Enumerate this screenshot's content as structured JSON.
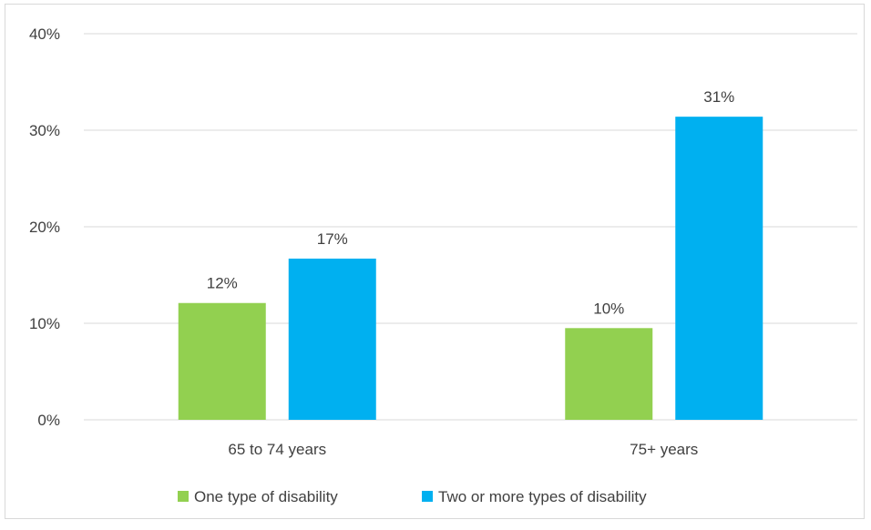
{
  "chart_data": {
    "type": "bar",
    "title": "",
    "xlabel": "",
    "ylabel": "",
    "categories": [
      "65 to 74 years",
      "75+ years"
    ],
    "series": [
      {
        "name": "One type of disability",
        "color": "#92d050",
        "values": [
          12,
          10
        ],
        "plotted_values": [
          12.1,
          9.5
        ],
        "labels": [
          "12%",
          "10%"
        ]
      },
      {
        "name": "Two or more types of disability",
        "color": "#00b0f0",
        "values": [
          17,
          31
        ],
        "plotted_values": [
          16.7,
          31.4
        ],
        "labels": [
          "17%",
          "31%"
        ]
      }
    ],
    "ylim": [
      0,
      40
    ],
    "yticks": [
      0,
      10,
      20,
      30,
      40
    ],
    "ytick_labels": [
      "0%",
      "10%",
      "20%",
      "30%",
      "40%"
    ],
    "grid": true,
    "legend_position": "bottom"
  }
}
